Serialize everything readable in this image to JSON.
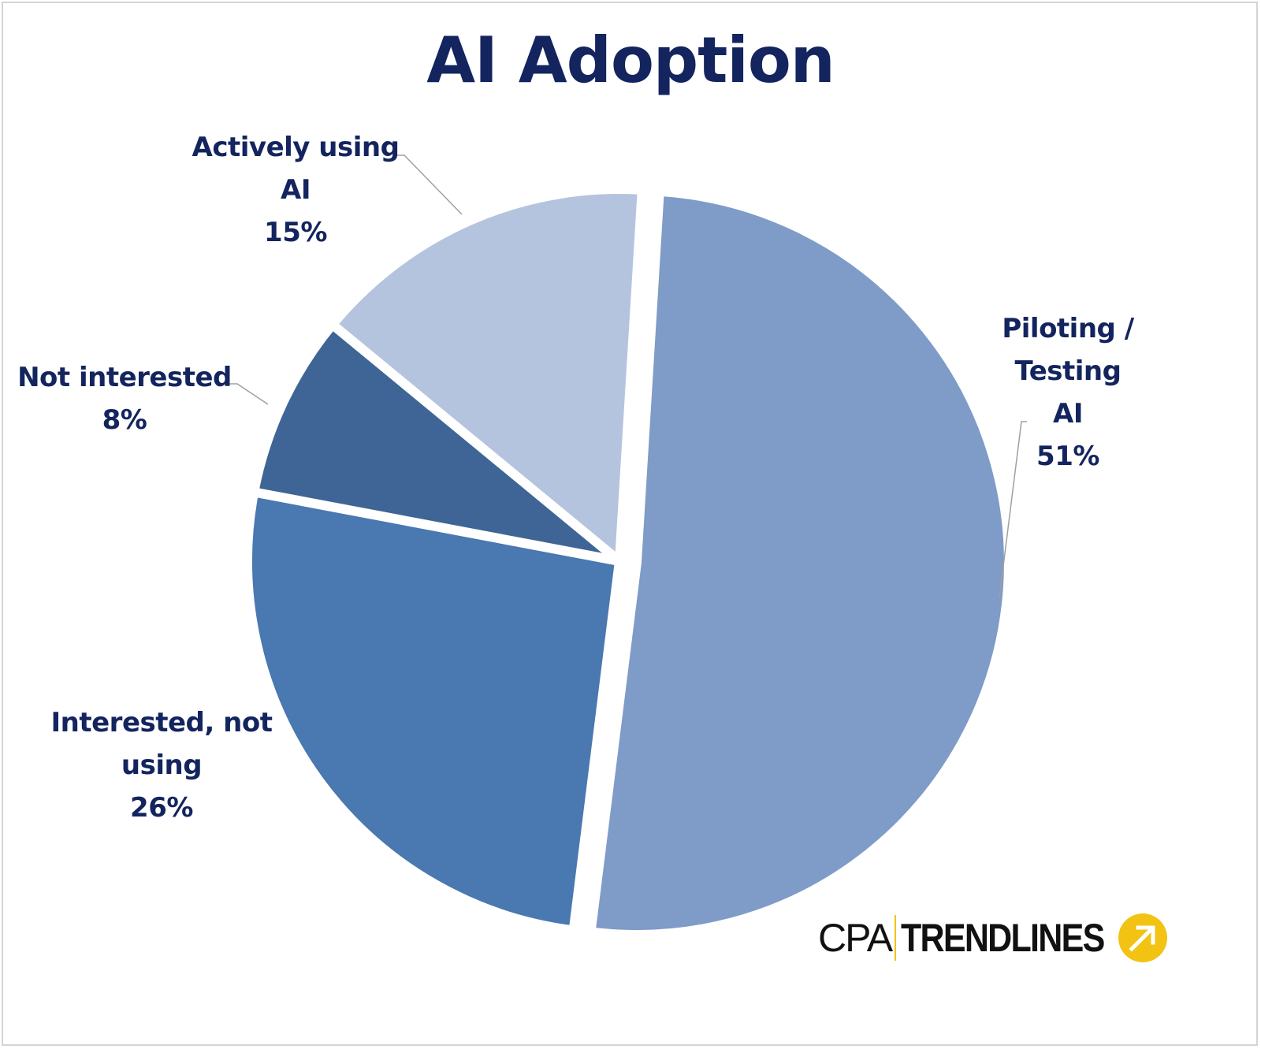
{
  "chart_data": {
    "type": "pie",
    "title": "AI Adoption",
    "slices": [
      {
        "label": "Piloting / Testing AI",
        "value": 51,
        "value_text": "51%",
        "color": "#7f9bc7",
        "exploded": true
      },
      {
        "label": "Interested, not using",
        "value": 26,
        "value_text": "26%",
        "color": "#4a78b0",
        "exploded": false
      },
      {
        "label": "Not interested",
        "value": 8,
        "value_text": "8%",
        "color": "#3e6595",
        "exploded": false
      },
      {
        "label": "Actively using AI",
        "value": 15,
        "value_text": "15%",
        "color": "#b5c4de",
        "exploded": false
      }
    ],
    "label_lines": [
      [
        "Piloting /",
        "Testing AI",
        "51%"
      ],
      [
        "Interested, not",
        "using",
        "26%"
      ],
      [
        "Not interested",
        "8%"
      ],
      [
        "Actively using",
        "AI",
        "15%"
      ]
    ],
    "label_color": "#13245e",
    "leader_line_color": "#a0a0a0"
  },
  "logo": {
    "prefix": "CPA",
    "name": "TRENDLINES",
    "accent_color": "#f2c312",
    "icon": "arrow-up-right-icon"
  }
}
